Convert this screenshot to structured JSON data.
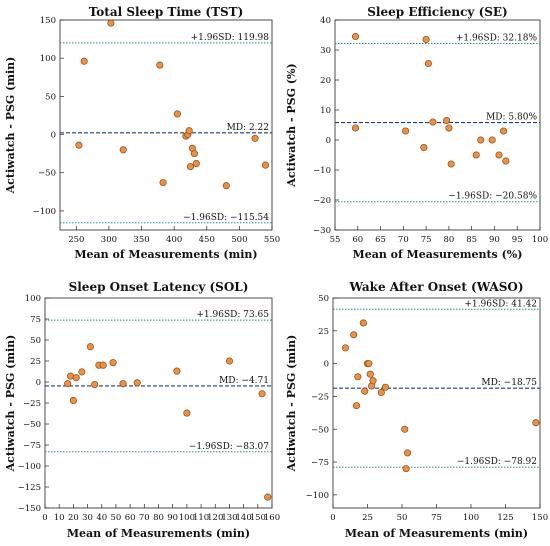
{
  "chart_data": [
    {
      "type": "scatter",
      "title": "Total Sleep Time (TST)",
      "xlabel": "Mean of Measurements (min)",
      "ylabel": "Actiwatch - PSG (min)",
      "xlim": [
        225,
        550
      ],
      "ylim": [
        -125,
        150
      ],
      "xticks": [
        250,
        300,
        350,
        400,
        450,
        500,
        550
      ],
      "yticks": [
        -100,
        -50,
        0,
        50,
        100,
        150
      ],
      "upper_loa": 119.98,
      "mean_diff": 2.22,
      "lower_loa": -115.54,
      "upper_label": "+1.96SD: 119.98",
      "mean_label": "MD: 2.22",
      "lower_label": "−1.96SD: −115.54",
      "x": [
        254,
        262,
        303,
        322,
        378,
        383,
        405,
        418,
        421,
        423,
        425,
        428,
        431,
        434,
        480,
        524,
        540
      ],
      "y": [
        -14,
        96,
        146,
        -20,
        91,
        -63,
        27,
        -2,
        0,
        5,
        -42,
        -18,
        -25,
        -38,
        -67,
        -5,
        -40
      ]
    },
    {
      "type": "scatter",
      "title": "Sleep Efficiency (SE)",
      "xlabel": "Mean of Measurements (%)",
      "ylabel": "Actiwatch - PSG (%)",
      "xlim": [
        55,
        100
      ],
      "ylim": [
        -30,
        40
      ],
      "xticks": [
        55,
        60,
        65,
        70,
        75,
        80,
        85,
        90,
        95,
        100
      ],
      "yticks": [
        -30,
        -20,
        -10,
        0,
        10,
        20,
        30,
        40
      ],
      "upper_loa": 32.18,
      "mean_diff": 5.8,
      "lower_loa": -20.58,
      "upper_label": "+1.96SD: 32.18%",
      "mean_label": "MD: 5.80%",
      "lower_label": "−1.96SD: −20.58%",
      "x": [
        59.5,
        59.5,
        70.5,
        74.5,
        75.0,
        75.5,
        76.5,
        79.5,
        80.0,
        80.5,
        86.0,
        87.0,
        89.5,
        91.0,
        92.0,
        92.5
      ],
      "y": [
        34.5,
        4.0,
        3.0,
        -2.5,
        33.5,
        25.5,
        6.0,
        6.5,
        4.0,
        -8.0,
        -5.0,
        0.0,
        0.0,
        -5.0,
        3.0,
        -7.0
      ]
    },
    {
      "type": "scatter",
      "title": "Sleep Onset Latency (SOL)",
      "xlabel": "Mean of Measurements (min)",
      "ylabel": "Actiwatch - PSG (min)",
      "xlim": [
        0,
        160
      ],
      "ylim": [
        -150,
        100
      ],
      "xticks": [
        0,
        10,
        20,
        30,
        40,
        50,
        60,
        70,
        80,
        90,
        100,
        110,
        120,
        130,
        140,
        150,
        160
      ],
      "yticks": [
        -150,
        -125,
        -100,
        -75,
        -50,
        -25,
        0,
        25,
        50,
        75,
        100
      ],
      "upper_loa": 73.65,
      "mean_diff": -4.71,
      "lower_loa": -83.07,
      "upper_label": "+1.96SD: 73.65",
      "mean_label": "MD: −4.71",
      "lower_label": "−1.96SD: −83.07",
      "x": [
        16,
        18,
        20,
        22,
        26,
        32,
        35,
        38,
        41,
        48,
        55,
        65,
        93,
        100,
        130,
        153,
        157
      ],
      "y": [
        -2,
        7,
        -22,
        5,
        12,
        42,
        -3,
        20,
        20,
        23,
        -2,
        -1,
        13,
        -37,
        25,
        -14,
        -137
      ]
    },
    {
      "type": "scatter",
      "title": "Wake After Onset (WASO)",
      "xlabel": "Mean of Measurements (min)",
      "ylabel": "Actiwatch - PSG (min)",
      "xlim": [
        0,
        150
      ],
      "ylim": [
        -110,
        50
      ],
      "xticks": [
        0,
        25,
        50,
        75,
        100,
        125,
        150
      ],
      "yticks": [
        -100,
        -75,
        -50,
        -25,
        0,
        25,
        50
      ],
      "upper_loa": 41.42,
      "mean_diff": -18.75,
      "lower_loa": -78.92,
      "upper_label": "+1.96SD: 41.42",
      "mean_label": "MD: −18.75",
      "lower_label": "−1.96SD: −78.92",
      "x": [
        9,
        15,
        17,
        18,
        22,
        23,
        25,
        26,
        27,
        28,
        29,
        35,
        38,
        52,
        53,
        54,
        147
      ],
      "y": [
        12,
        22,
        -32,
        -10,
        31,
        -21,
        0,
        0,
        -8,
        -17,
        -13,
        -22,
        -18,
        -50,
        -80,
        -68,
        -45
      ]
    }
  ],
  "style": {
    "point_fill": "#e8914a",
    "point_stroke": "#8a4a14",
    "mean_line": "#1f3f7a",
    "loa_line": "#2e8b87"
  }
}
